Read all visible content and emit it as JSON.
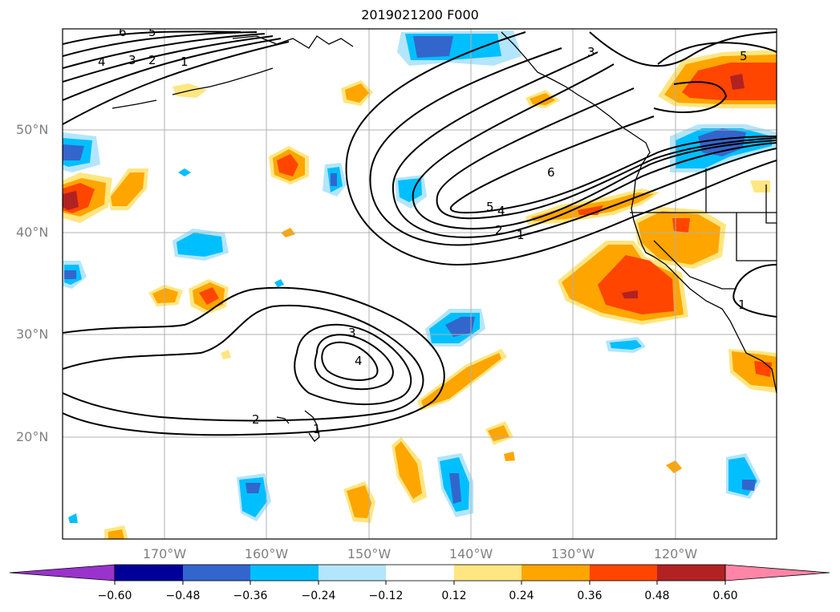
{
  "title": "2019021200 F000",
  "latitude_labels": [
    "50°N",
    "40°N",
    "30°N",
    "20°N"
  ],
  "longitude_labels": [
    "170°W",
    "160°W",
    "150°W",
    "140°W",
    "130°W",
    "120°W"
  ],
  "colorbar": {
    "tick_labels": [
      "−0.60",
      "−0.48",
      "−0.36",
      "−0.24",
      "−0.12",
      "0.12",
      "0.24",
      "0.36",
      "0.48",
      "0.60"
    ],
    "colors": [
      "#9933cc",
      "#000099",
      "#3366cc",
      "#00bfff",
      "#b3e5fc",
      "#ffffff",
      "#ffe680",
      "#ffa500",
      "#ff4500",
      "#b22222",
      "#ff85a8"
    ],
    "extend": "both"
  },
  "contour_labels": {
    "north_west": [
      "6",
      "5",
      "4",
      "3",
      "2",
      "1"
    ],
    "north_east_3": "3",
    "north_east_5": "5",
    "trough_6": "6",
    "trough_5": "5",
    "trough_4": "4",
    "trough_2": "2",
    "trough_1": "1",
    "subtrop_3": "3",
    "subtrop_4": "4",
    "subtrop_2": "2",
    "subtrop_1": "1",
    "coast_1": "1"
  },
  "colors": {
    "grid": "#b0b0b0",
    "axis_label": "#808080",
    "contour": "#000000"
  }
}
